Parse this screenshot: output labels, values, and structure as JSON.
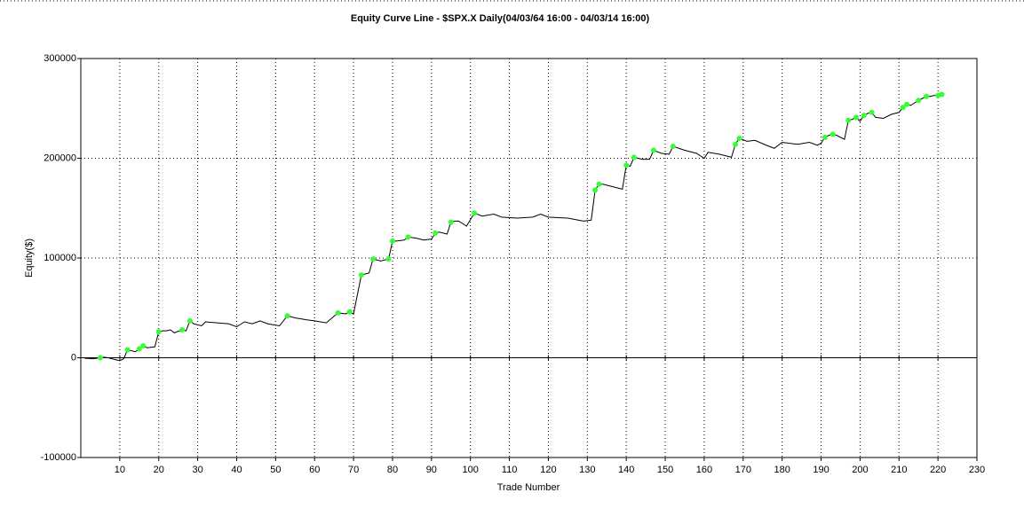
{
  "chart_data": {
    "type": "line",
    "title": "Equity Curve Line - $SPX.X Daily(04/03/64 16:00 - 04/03/14 16:00)",
    "x_label": "Trade Number",
    "y_label": "Equity($)",
    "xlim": [
      0,
      230
    ],
    "xticks": [
      10,
      20,
      30,
      40,
      50,
      60,
      70,
      80,
      90,
      100,
      110,
      120,
      130,
      140,
      150,
      160,
      170,
      180,
      190,
      200,
      210,
      220,
      230
    ],
    "ylim": [
      -100000,
      300000
    ],
    "yticks": [
      300000,
      200000,
      100000,
      0,
      -100000
    ],
    "grid": true,
    "series": [
      {
        "color": "#000000",
        "style": "line",
        "x": [
          1,
          3,
          5,
          6,
          7,
          9,
          10,
          11,
          12,
          14,
          15,
          16,
          17,
          19,
          20,
          21,
          22,
          23,
          24,
          26,
          27,
          28,
          29,
          31,
          32,
          35,
          38,
          40,
          42,
          44,
          46,
          48,
          51,
          53,
          55,
          58,
          60,
          63,
          66,
          68,
          69,
          70,
          72,
          73,
          74,
          75,
          77,
          79,
          80,
          81,
          83,
          84,
          86,
          88,
          90,
          91,
          92,
          94,
          95,
          96,
          97,
          99,
          101,
          103,
          106,
          108,
          112,
          116,
          118,
          120,
          125,
          129,
          131,
          132,
          133,
          134,
          136,
          139,
          140,
          141,
          142,
          144,
          146,
          147,
          149,
          151,
          152,
          155,
          158,
          160,
          161,
          164,
          167,
          168,
          169,
          171,
          173,
          176,
          178,
          180,
          184,
          187,
          189,
          190,
          191,
          192,
          193,
          194,
          196,
          197,
          198,
          199,
          200,
          201,
          202,
          203,
          204,
          206,
          208,
          210,
          211,
          212,
          213,
          215,
          216,
          217,
          218,
          219,
          220,
          221
        ],
        "values": [
          -500,
          -1000,
          0,
          500,
          0,
          -2000,
          -3000,
          -1000,
          8000,
          6000,
          9000,
          12000,
          10000,
          11000,
          26000,
          27000,
          27000,
          28000,
          25000,
          28000,
          27000,
          37000,
          34000,
          32000,
          36000,
          35000,
          34000,
          31000,
          36000,
          34000,
          37000,
          34000,
          32000,
          42000,
          40000,
          38000,
          37000,
          35000,
          45000,
          44000,
          46000,
          44000,
          83000,
          84000,
          85000,
          99000,
          97000,
          99000,
          117000,
          117000,
          118000,
          121000,
          120000,
          118000,
          119000,
          125000,
          126000,
          124000,
          136000,
          137000,
          137000,
          132000,
          145000,
          142000,
          144000,
          141000,
          140000,
          141000,
          144000,
          141000,
          140000,
          137000,
          138000,
          168000,
          174000,
          174000,
          172000,
          169000,
          193000,
          192000,
          201000,
          199000,
          199000,
          208000,
          205000,
          204000,
          212000,
          208000,
          205000,
          200000,
          206000,
          204000,
          201000,
          214000,
          220000,
          217000,
          218000,
          213000,
          210000,
          216000,
          214000,
          216000,
          213000,
          215000,
          221000,
          223000,
          224000,
          223000,
          219000,
          238000,
          239000,
          241000,
          237000,
          243000,
          245000,
          246000,
          241000,
          240000,
          244000,
          246000,
          251000,
          254000,
          253000,
          258000,
          260000,
          262000,
          262000,
          263000,
          263000,
          264000
        ]
      },
      {
        "color": "#33ff33",
        "style": "markers",
        "x": [
          5,
          12,
          15,
          16,
          20,
          26,
          28,
          53,
          66,
          69,
          72,
          75,
          79,
          80,
          84,
          91,
          95,
          101,
          132,
          133,
          140,
          142,
          147,
          152,
          168,
          169,
          191,
          193,
          197,
          199,
          201,
          203,
          211,
          212,
          215,
          217,
          220,
          221
        ],
        "values": [
          0,
          8000,
          9000,
          12000,
          26000,
          28000,
          37000,
          42000,
          45000,
          46000,
          83000,
          99000,
          99000,
          117000,
          121000,
          125000,
          136000,
          145000,
          168000,
          174000,
          193000,
          201000,
          208000,
          212000,
          214000,
          220000,
          221000,
          224000,
          238000,
          241000,
          243000,
          246000,
          251000,
          254000,
          258000,
          262000,
          263000,
          264000
        ]
      }
    ]
  }
}
